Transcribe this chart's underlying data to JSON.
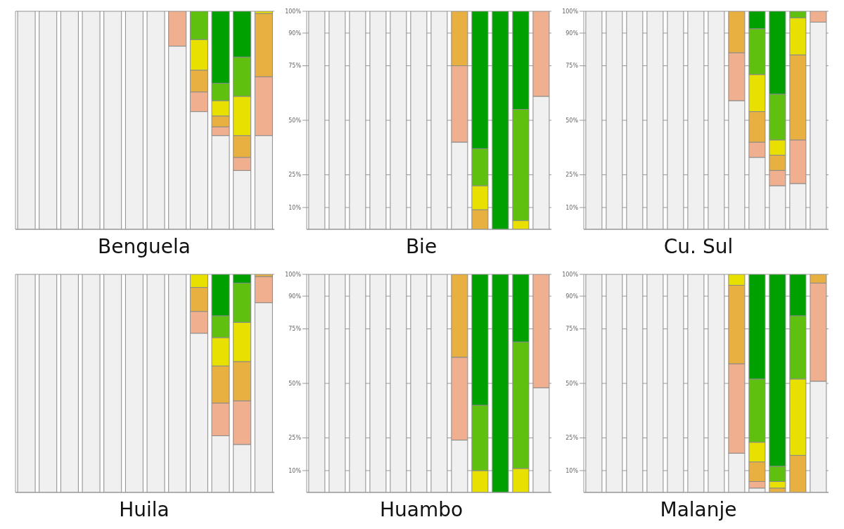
{
  "chart_data": [
    {
      "type": "bar",
      "title": "Benguela",
      "stacked": true,
      "grid": "y",
      "legend": false,
      "tick_labels": false,
      "categories": [
        null,
        null,
        null,
        null,
        null,
        null,
        null,
        null,
        null,
        null,
        null,
        null
      ],
      "ylim": [
        0,
        100
      ],
      "yticks": [
        {
          "value": 10,
          "label": null
        },
        {
          "value": 25,
          "label": null
        },
        {
          "value": 50,
          "label": null
        },
        {
          "value": 75,
          "label": null
        },
        {
          "value": 90,
          "label": null
        },
        {
          "value": 100,
          "label": null
        }
      ],
      "series": [
        {
          "color": "#f0f0f0",
          "values": [
            100,
            100,
            100,
            100,
            100,
            100,
            100,
            84,
            54,
            43,
            27,
            43
          ]
        },
        {
          "color": "#f0b090",
          "values": [
            0,
            0,
            0,
            0,
            0,
            0,
            0,
            16,
            9,
            4,
            6,
            27
          ]
        },
        {
          "color": "#e8b040",
          "values": [
            0,
            0,
            0,
            0,
            0,
            0,
            0,
            0,
            10,
            5,
            10,
            29
          ]
        },
        {
          "color": "#e8e000",
          "values": [
            0,
            0,
            0,
            0,
            0,
            0,
            0,
            0,
            14,
            7,
            18,
            1
          ]
        },
        {
          "color": "#60c010",
          "values": [
            0,
            0,
            0,
            0,
            0,
            0,
            0,
            0,
            13,
            8,
            18,
            0
          ]
        },
        {
          "color": "#00a000",
          "values": [
            0,
            0,
            0,
            0,
            0,
            0,
            0,
            0,
            0,
            33,
            21,
            0
          ]
        }
      ]
    },
    {
      "type": "bar",
      "title": "Bie",
      "stacked": true,
      "grid": "y",
      "legend": false,
      "tick_labels": "y",
      "categories": [
        null,
        null,
        null,
        null,
        null,
        null,
        null,
        null,
        null,
        null,
        null,
        null
      ],
      "ylim": [
        0,
        100
      ],
      "yticks": [
        {
          "value": 10,
          "label": "10%"
        },
        {
          "value": 25,
          "label": "25%"
        },
        {
          "value": 50,
          "label": "50%"
        },
        {
          "value": 75,
          "label": "75%"
        },
        {
          "value": 90,
          "label": "90%"
        },
        {
          "value": 100,
          "label": "100%"
        }
      ],
      "series": [
        {
          "color": "#f0f0f0",
          "values": [
            100,
            100,
            100,
            100,
            100,
            100,
            100,
            40,
            0,
            0,
            0,
            61
          ]
        },
        {
          "color": "#f0b090",
          "values": [
            0,
            0,
            0,
            0,
            0,
            0,
            0,
            35,
            0,
            0,
            0,
            39
          ]
        },
        {
          "color": "#e8b040",
          "values": [
            0,
            0,
            0,
            0,
            0,
            0,
            0,
            25,
            9,
            0,
            0,
            0
          ]
        },
        {
          "color": "#e8e000",
          "values": [
            0,
            0,
            0,
            0,
            0,
            0,
            0,
            0,
            11,
            0,
            4,
            0
          ]
        },
        {
          "color": "#60c010",
          "values": [
            0,
            0,
            0,
            0,
            0,
            0,
            0,
            0,
            17,
            0,
            51,
            0
          ]
        },
        {
          "color": "#00a000",
          "values": [
            0,
            0,
            0,
            0,
            0,
            0,
            0,
            0,
            63,
            100,
            45,
            0
          ]
        }
      ]
    },
    {
      "type": "bar",
      "title": "Cu. Sul",
      "stacked": true,
      "grid": "y",
      "legend": false,
      "tick_labels": "y",
      "categories": [
        null,
        null,
        null,
        null,
        null,
        null,
        null,
        null,
        null,
        null,
        null,
        null
      ],
      "ylim": [
        0,
        100
      ],
      "yticks": [
        {
          "value": 10,
          "label": "10%"
        },
        {
          "value": 25,
          "label": "25%"
        },
        {
          "value": 50,
          "label": "50%"
        },
        {
          "value": 75,
          "label": "75%"
        },
        {
          "value": 90,
          "label": "90%"
        },
        {
          "value": 100,
          "label": "100%"
        }
      ],
      "series": [
        {
          "color": "#f0f0f0",
          "values": [
            100,
            100,
            100,
            100,
            100,
            100,
            100,
            59,
            33,
            20,
            21,
            95
          ]
        },
        {
          "color": "#f0b090",
          "values": [
            0,
            0,
            0,
            0,
            0,
            0,
            0,
            22,
            7,
            7,
            20,
            5
          ]
        },
        {
          "color": "#e8b040",
          "values": [
            0,
            0,
            0,
            0,
            0,
            0,
            0,
            19,
            14,
            7,
            39,
            0
          ]
        },
        {
          "color": "#e8e000",
          "values": [
            0,
            0,
            0,
            0,
            0,
            0,
            0,
            0,
            17,
            7,
            17,
            0
          ]
        },
        {
          "color": "#60c010",
          "values": [
            0,
            0,
            0,
            0,
            0,
            0,
            0,
            0,
            21,
            21,
            3,
            0
          ]
        },
        {
          "color": "#00a000",
          "values": [
            0,
            0,
            0,
            0,
            0,
            0,
            0,
            0,
            8,
            38,
            0,
            0
          ]
        }
      ]
    },
    {
      "type": "bar",
      "title": "Huila",
      "stacked": true,
      "grid": "y",
      "legend": false,
      "tick_labels": false,
      "categories": [
        null,
        null,
        null,
        null,
        null,
        null,
        null,
        null,
        null,
        null,
        null,
        null
      ],
      "ylim": [
        0,
        100
      ],
      "yticks": [
        {
          "value": 10,
          "label": null
        },
        {
          "value": 25,
          "label": null
        },
        {
          "value": 50,
          "label": null
        },
        {
          "value": 75,
          "label": null
        },
        {
          "value": 90,
          "label": null
        },
        {
          "value": 100,
          "label": null
        }
      ],
      "series": [
        {
          "color": "#f0f0f0",
          "values": [
            100,
            100,
            100,
            100,
            100,
            100,
            100,
            100,
            73,
            26,
            22,
            87
          ]
        },
        {
          "color": "#f0b090",
          "values": [
            0,
            0,
            0,
            0,
            0,
            0,
            0,
            0,
            10,
            15,
            20,
            12
          ]
        },
        {
          "color": "#e8b040",
          "values": [
            0,
            0,
            0,
            0,
            0,
            0,
            0,
            0,
            11,
            17,
            18,
            1
          ]
        },
        {
          "color": "#e8e000",
          "values": [
            0,
            0,
            0,
            0,
            0,
            0,
            0,
            0,
            6,
            13,
            18,
            0
          ]
        },
        {
          "color": "#60c010",
          "values": [
            0,
            0,
            0,
            0,
            0,
            0,
            0,
            0,
            0,
            10,
            18,
            0
          ]
        },
        {
          "color": "#00a000",
          "values": [
            0,
            0,
            0,
            0,
            0,
            0,
            0,
            0,
            0,
            19,
            4,
            0
          ]
        }
      ]
    },
    {
      "type": "bar",
      "title": "Huambo",
      "stacked": true,
      "grid": "y",
      "legend": false,
      "tick_labels": "y",
      "categories": [
        null,
        null,
        null,
        null,
        null,
        null,
        null,
        null,
        null,
        null,
        null,
        null
      ],
      "ylim": [
        0,
        100
      ],
      "yticks": [
        {
          "value": 10,
          "label": "10%"
        },
        {
          "value": 25,
          "label": "25%"
        },
        {
          "value": 50,
          "label": "50%"
        },
        {
          "value": 75,
          "label": "75%"
        },
        {
          "value": 90,
          "label": "90%"
        },
        {
          "value": 100,
          "label": "100%"
        }
      ],
      "series": [
        {
          "color": "#f0f0f0",
          "values": [
            100,
            100,
            100,
            100,
            100,
            100,
            100,
            24,
            0,
            0,
            0,
            48
          ]
        },
        {
          "color": "#f0b090",
          "values": [
            0,
            0,
            0,
            0,
            0,
            0,
            0,
            38,
            0,
            0,
            0,
            52
          ]
        },
        {
          "color": "#e8b040",
          "values": [
            0,
            0,
            0,
            0,
            0,
            0,
            0,
            38,
            0,
            0,
            0,
            0
          ]
        },
        {
          "color": "#e8e000",
          "values": [
            0,
            0,
            0,
            0,
            0,
            0,
            0,
            0,
            10,
            0,
            11,
            0
          ]
        },
        {
          "color": "#60c010",
          "values": [
            0,
            0,
            0,
            0,
            0,
            0,
            0,
            0,
            30,
            0,
            58,
            0
          ]
        },
        {
          "color": "#00a000",
          "values": [
            0,
            0,
            0,
            0,
            0,
            0,
            0,
            0,
            60,
            100,
            31,
            0
          ]
        }
      ]
    },
    {
      "type": "bar",
      "title": "Malanje",
      "stacked": true,
      "grid": "y",
      "legend": false,
      "tick_labels": "y",
      "categories": [
        null,
        null,
        null,
        null,
        null,
        null,
        null,
        null,
        null,
        null,
        null,
        null
      ],
      "ylim": [
        0,
        100
      ],
      "yticks": [
        {
          "value": 10,
          "label": "10%"
        },
        {
          "value": 25,
          "label": "25%"
        },
        {
          "value": 50,
          "label": "50%"
        },
        {
          "value": 75,
          "label": "75%"
        },
        {
          "value": 90,
          "label": "90%"
        },
        {
          "value": 100,
          "label": "100%"
        }
      ],
      "series": [
        {
          "color": "#f0f0f0",
          "values": [
            100,
            100,
            100,
            100,
            100,
            100,
            100,
            18,
            2,
            0,
            0,
            51
          ]
        },
        {
          "color": "#f0b090",
          "values": [
            0,
            0,
            0,
            0,
            0,
            0,
            0,
            41,
            3,
            0,
            0,
            45
          ]
        },
        {
          "color": "#e8b040",
          "values": [
            0,
            0,
            0,
            0,
            0,
            0,
            0,
            36,
            9,
            2,
            17,
            4
          ]
        },
        {
          "color": "#e8e000",
          "values": [
            0,
            0,
            0,
            0,
            0,
            0,
            0,
            5,
            9,
            3,
            35,
            0
          ]
        },
        {
          "color": "#60c010",
          "values": [
            0,
            0,
            0,
            0,
            0,
            0,
            0,
            0,
            29,
            7,
            29,
            0
          ]
        },
        {
          "color": "#00a000",
          "values": [
            0,
            0,
            0,
            0,
            0,
            0,
            0,
            0,
            48,
            88,
            19,
            0
          ]
        }
      ]
    }
  ]
}
